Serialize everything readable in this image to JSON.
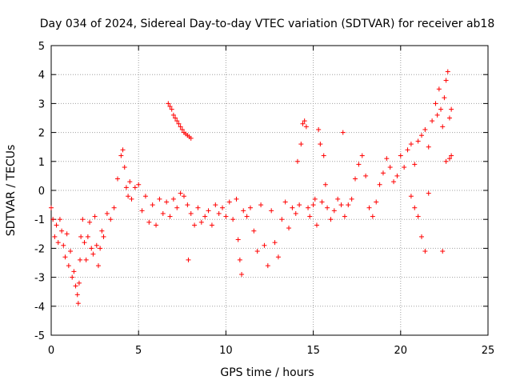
{
  "chart_data": {
    "type": "scatter",
    "title": "Day 034 of 2024, Sidereal Day-to-day VTEC variation (SDTVAR) for receiver ab18",
    "xlabel": "GPS time / hours",
    "ylabel": "SDTVAR / TECUs",
    "xlim": [
      0,
      25
    ],
    "ylim": [
      -5,
      5
    ],
    "xticks": [
      0,
      5,
      10,
      15,
      20,
      25
    ],
    "yticks": [
      -5,
      -4,
      -3,
      -2,
      -1,
      0,
      1,
      2,
      3,
      4,
      5
    ],
    "grid": true,
    "marker": "+",
    "series": [
      {
        "name": "SDTVAR",
        "color": "#ff0000",
        "x": [
          0.0,
          0.1,
          0.2,
          0.3,
          0.4,
          0.5,
          0.6,
          0.7,
          0.8,
          0.9,
          1.0,
          1.1,
          1.2,
          1.3,
          1.4,
          1.5,
          1.55,
          1.6,
          1.65,
          1.7,
          1.8,
          1.9,
          2.0,
          2.1,
          2.2,
          2.3,
          2.4,
          2.5,
          2.6,
          2.7,
          2.8,
          2.9,
          3.0,
          3.2,
          3.4,
          3.6,
          3.8,
          4.0,
          4.1,
          4.2,
          4.3,
          4.4,
          4.5,
          4.6,
          4.8,
          5.0,
          5.2,
          5.4,
          5.6,
          5.8,
          6.0,
          6.2,
          6.4,
          6.6,
          6.8,
          7.0,
          7.2,
          7.4,
          7.6,
          7.8,
          6.7,
          6.8,
          6.9,
          7.0,
          7.1,
          7.2,
          7.3,
          7.4,
          7.5,
          7.6,
          7.7,
          7.8,
          7.9,
          8.0,
          7.85,
          8.0,
          8.2,
          8.4,
          8.6,
          8.8,
          9.0,
          9.2,
          9.4,
          9.6,
          9.8,
          10.0,
          10.2,
          10.4,
          10.6,
          10.7,
          10.8,
          10.9,
          11.0,
          11.2,
          11.4,
          11.6,
          11.8,
          12.0,
          12.2,
          12.4,
          12.6,
          12.8,
          13.0,
          13.2,
          13.4,
          13.6,
          13.8,
          14.0,
          14.1,
          14.2,
          14.3,
          14.4,
          14.5,
          14.6,
          14.7,
          14.8,
          15.0,
          15.1,
          15.2,
          15.3,
          15.4,
          15.5,
          15.6,
          15.7,
          15.8,
          16.0,
          16.2,
          16.4,
          16.6,
          16.7,
          16.8,
          17.0,
          17.2,
          17.4,
          17.6,
          17.8,
          18.0,
          18.2,
          18.4,
          18.6,
          18.8,
          19.0,
          19.2,
          19.4,
          19.6,
          19.8,
          20.0,
          20.2,
          20.4,
          20.6,
          20.8,
          21.0,
          21.2,
          21.4,
          21.6,
          21.8,
          22.0,
          22.1,
          22.2,
          22.3,
          22.4,
          22.5,
          22.6,
          22.7,
          22.8,
          22.9,
          20.6,
          20.8,
          21.0,
          21.2,
          21.4,
          21.6,
          22.4,
          22.6,
          22.8,
          22.9
        ],
        "y": [
          -0.6,
          -1.0,
          -1.6,
          -1.2,
          -1.8,
          -1.0,
          -1.4,
          -1.9,
          -2.3,
          -1.5,
          -2.6,
          -2.1,
          -3.0,
          -2.8,
          -3.3,
          -3.6,
          -3.9,
          -3.2,
          -2.4,
          -1.6,
          -1.0,
          -1.8,
          -2.4,
          -1.6,
          -1.1,
          -2.0,
          -2.2,
          -0.9,
          -1.9,
          -2.6,
          -2.0,
          -1.4,
          -1.6,
          -0.8,
          -1.0,
          -0.6,
          0.4,
          1.2,
          1.4,
          0.8,
          0.1,
          -0.2,
          0.3,
          -0.3,
          0.1,
          0.2,
          -0.7,
          -0.2,
          -1.1,
          -0.5,
          -1.2,
          -0.3,
          -0.8,
          -0.4,
          -0.9,
          -0.3,
          -0.6,
          -0.1,
          -0.2,
          -0.5,
          3.0,
          2.9,
          2.8,
          2.6,
          2.5,
          2.4,
          2.3,
          2.2,
          2.1,
          2.0,
          1.95,
          1.9,
          1.85,
          1.8,
          -2.4,
          -0.8,
          -1.2,
          -0.6,
          -1.1,
          -0.9,
          -0.7,
          -1.2,
          -0.5,
          -0.8,
          -0.6,
          -0.9,
          -0.4,
          -1.0,
          -0.3,
          -1.7,
          -2.4,
          -2.9,
          -0.7,
          -0.9,
          -0.6,
          -1.4,
          -2.1,
          -0.5,
          -1.9,
          -2.6,
          -0.7,
          -1.8,
          -2.3,
          -1.0,
          -0.4,
          -1.3,
          -0.6,
          -0.8,
          1.0,
          -0.5,
          1.6,
          2.3,
          2.4,
          2.2,
          -0.6,
          -0.9,
          -0.5,
          -0.3,
          -1.2,
          2.1,
          1.6,
          -0.4,
          1.2,
          0.2,
          -0.6,
          -1.0,
          -0.7,
          -0.3,
          -0.5,
          2.0,
          -0.9,
          -0.5,
          -0.3,
          0.4,
          0.9,
          1.2,
          0.5,
          -0.6,
          -0.9,
          -0.4,
          0.2,
          0.6,
          1.1,
          0.8,
          0.3,
          0.5,
          1.2,
          0.8,
          1.4,
          1.6,
          0.9,
          1.7,
          1.9,
          2.1,
          1.5,
          2.4,
          3.0,
          2.6,
          3.5,
          2.8,
          2.2,
          3.2,
          3.8,
          4.1,
          2.5,
          2.8,
          -0.2,
          -0.6,
          -0.9,
          -1.6,
          -2.1,
          -0.1,
          -2.1,
          1.0,
          1.1,
          1.2
        ]
      }
    ]
  }
}
